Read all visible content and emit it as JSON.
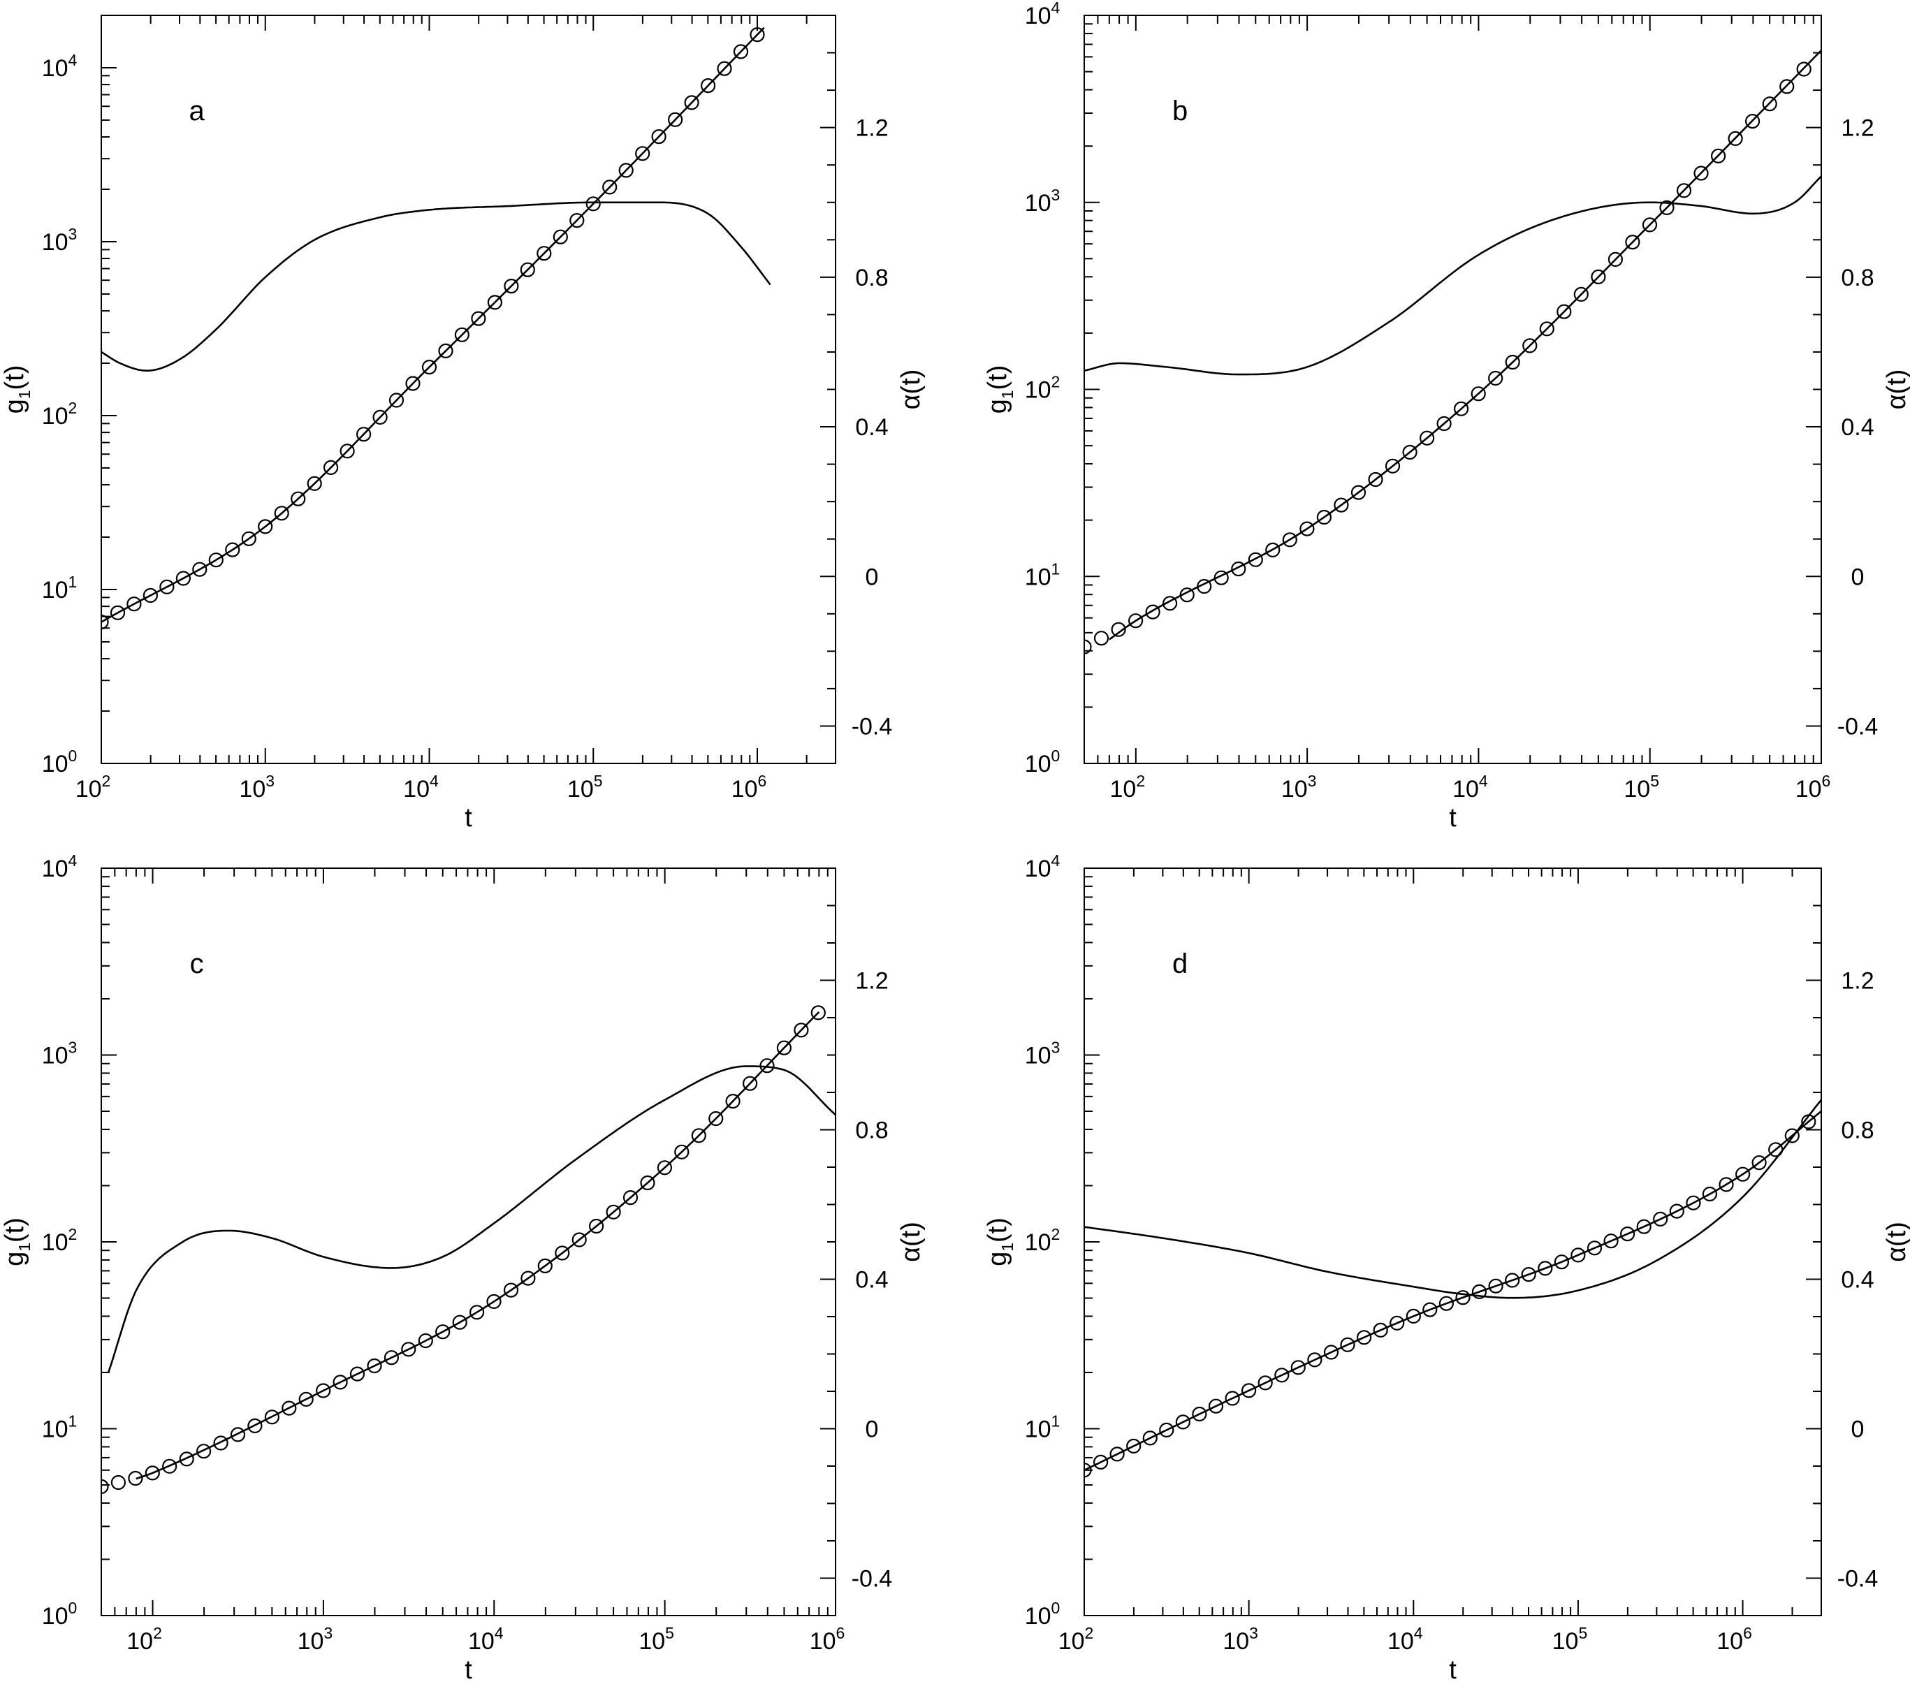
{
  "chart_data": [
    {
      "type": "scatter",
      "panel_label": "a",
      "xlabel": "t",
      "ylabel": "g1(t)",
      "ylabel_right": "α(t)",
      "x_scale": "log",
      "y_scale": "log",
      "xlim": [
        100,
        3000000
      ],
      "ylim": [
        1,
        20000
      ],
      "y2lim": [
        -0.5,
        1.5
      ],
      "x_ticks": [
        {
          "base": "10",
          "exp": "2"
        },
        {
          "base": "10",
          "exp": "3"
        },
        {
          "base": "10",
          "exp": "4"
        },
        {
          "base": "10",
          "exp": "5"
        },
        {
          "base": "10",
          "exp": "6"
        }
      ],
      "y_ticks": [
        {
          "base": "10",
          "exp": "0"
        },
        {
          "base": "10",
          "exp": "1"
        },
        {
          "base": "10",
          "exp": "2"
        },
        {
          "base": "10",
          "exp": "3"
        },
        {
          "base": "10",
          "exp": "4"
        }
      ],
      "y2_ticks": [
        "-0.4",
        "0",
        "0.4",
        "0.8",
        "1.2"
      ],
      "y2_tick_values": [
        -0.4,
        0,
        0.4,
        0.8,
        1.2
      ],
      "g1_points": {
        "t": [
          100,
          1000,
          10000,
          100000,
          1100000
        ],
        "g1": [
          6.5,
          23,
          190,
          1650,
          17000
        ]
      },
      "g1_fit": {
        "t": [
          100,
          1000,
          10000,
          100000,
          1100000
        ],
        "g1": [
          6.5,
          23,
          190,
          1650,
          17000
        ]
      },
      "alpha": {
        "t": [
          100,
          130,
          190,
          300,
          500,
          1000,
          2000,
          5000,
          10000,
          30000,
          100000,
          250000,
          500000,
          800000,
          1200000
        ],
        "alpha": [
          0.6,
          0.57,
          0.55,
          0.58,
          0.66,
          0.8,
          0.9,
          0.96,
          0.98,
          0.99,
          1.0,
          1.0,
          0.97,
          0.88,
          0.78
        ]
      }
    },
    {
      "type": "scatter",
      "panel_label": "b",
      "xlabel": "t",
      "ylabel": "g1(t)",
      "ylabel_right": "α(t)",
      "x_scale": "log",
      "y_scale": "log",
      "xlim": [
        50,
        1000000
      ],
      "ylim": [
        1,
        10000
      ],
      "y2lim": [
        -0.5,
        1.5
      ],
      "x_ticks": [
        {
          "base": "10",
          "exp": "2"
        },
        {
          "base": "10",
          "exp": "3"
        },
        {
          "base": "10",
          "exp": "4"
        },
        {
          "base": "10",
          "exp": "5"
        },
        {
          "base": "10",
          "exp": "6"
        }
      ],
      "y_ticks": [
        {
          "base": "10",
          "exp": "0"
        },
        {
          "base": "10",
          "exp": "1"
        },
        {
          "base": "10",
          "exp": "2"
        },
        {
          "base": "10",
          "exp": "3"
        },
        {
          "base": "10",
          "exp": "4"
        }
      ],
      "y2_ticks": [
        "-0.4",
        "0",
        "0.4",
        "0.8",
        "1.2"
      ],
      "y2_tick_values": [
        -0.4,
        0,
        0.4,
        0.8,
        1.2
      ],
      "g1_points": {
        "t": [
          50,
          100,
          1000,
          10000,
          100000,
          900000
        ],
        "g1": [
          4.2,
          5.8,
          18,
          95,
          760,
          5800
        ]
      },
      "g1_fit": {
        "t": [
          70,
          100,
          1000,
          10000,
          100000,
          1000000
        ],
        "g1": [
          4.6,
          5.8,
          18,
          95,
          760,
          6500
        ]
      },
      "alpha": {
        "t": [
          50,
          80,
          150,
          400,
          1000,
          3000,
          10000,
          30000,
          100000,
          200000,
          400000,
          700000,
          1000000
        ],
        "alpha": [
          0.55,
          0.57,
          0.56,
          0.54,
          0.56,
          0.68,
          0.86,
          0.96,
          1.0,
          0.99,
          0.97,
          1.0,
          1.07
        ]
      }
    },
    {
      "type": "scatter",
      "panel_label": "c",
      "xlabel": "t",
      "ylabel": "g1(t)",
      "ylabel_right": "α(t)",
      "x_scale": "log",
      "y_scale": "log",
      "xlim": [
        50,
        1000000
      ],
      "ylim": [
        1,
        10000
      ],
      "y2lim": [
        -0.5,
        1.5
      ],
      "x_ticks": [
        {
          "base": "10",
          "exp": "2"
        },
        {
          "base": "10",
          "exp": "3"
        },
        {
          "base": "10",
          "exp": "4"
        },
        {
          "base": "10",
          "exp": "5"
        },
        {
          "base": "10",
          "exp": "6"
        }
      ],
      "y_ticks": [
        {
          "base": "10",
          "exp": "0"
        },
        {
          "base": "10",
          "exp": "1"
        },
        {
          "base": "10",
          "exp": "2"
        },
        {
          "base": "10",
          "exp": "3"
        },
        {
          "base": "10",
          "exp": "4"
        }
      ],
      "y2_ticks": [
        "-0.4",
        "0",
        "0.4",
        "0.8",
        "1.2"
      ],
      "y2_tick_values": [
        -0.4,
        0,
        0.4,
        0.8,
        1.2
      ],
      "g1_points": {
        "t": [
          50,
          100,
          1000,
          10000,
          100000,
          800000
        ],
        "g1": [
          4.9,
          5.8,
          16,
          48,
          250,
          1700
        ]
      },
      "g1_fit": {
        "t": [
          80,
          100,
          1000,
          10000,
          100000,
          800000
        ],
        "g1": [
          5.4,
          5.8,
          16,
          48,
          250,
          1700
        ]
      },
      "alpha": {
        "t": [
          55,
          80,
          150,
          280,
          500,
          1000,
          2500,
          5000,
          10000,
          30000,
          100000,
          300000,
          500000,
          1000000
        ],
        "alpha": [
          0.15,
          0.37,
          0.5,
          0.53,
          0.51,
          0.46,
          0.43,
          0.46,
          0.55,
          0.72,
          0.88,
          0.97,
          0.96,
          0.84
        ]
      }
    },
    {
      "type": "scatter",
      "panel_label": "d",
      "xlabel": "t",
      "ylabel": "g1(t)",
      "ylabel_right": "α(t)",
      "x_scale": "log",
      "y_scale": "log",
      "xlim": [
        100,
        3000000
      ],
      "ylim": [
        1,
        10000
      ],
      "y2lim": [
        -0.5,
        1.5
      ],
      "x_ticks": [
        {
          "base": "10",
          "exp": "2"
        },
        {
          "base": "10",
          "exp": "3"
        },
        {
          "base": "10",
          "exp": "4"
        },
        {
          "base": "10",
          "exp": "5"
        },
        {
          "base": "10",
          "exp": "6"
        }
      ],
      "y_ticks": [
        {
          "base": "10",
          "exp": "0"
        },
        {
          "base": "10",
          "exp": "1"
        },
        {
          "base": "10",
          "exp": "2"
        },
        {
          "base": "10",
          "exp": "3"
        },
        {
          "base": "10",
          "exp": "4"
        }
      ],
      "y2_ticks": [
        "-0.4",
        "0",
        "0.4",
        "0.8",
        "1.2"
      ],
      "y2_tick_values": [
        -0.4,
        0,
        0.4,
        0.8,
        1.2
      ],
      "g1_points": {
        "t": [
          100,
          1000,
          10000,
          100000,
          1000000,
          3000000
        ],
        "g1": [
          6,
          16,
          40,
          85,
          230,
          500
        ]
      },
      "g1_fit": {
        "t": [
          100,
          1000,
          10000,
          100000,
          1000000,
          3000000
        ],
        "g1": [
          6,
          16,
          40,
          85,
          230,
          500
        ]
      },
      "alpha": {
        "t": [
          100,
          300,
          1000,
          3000,
          10000,
          20000,
          40000,
          100000,
          300000,
          1000000,
          3000000
        ],
        "alpha": [
          0.54,
          0.51,
          0.47,
          0.42,
          0.38,
          0.36,
          0.35,
          0.37,
          0.45,
          0.62,
          0.88
        ]
      }
    }
  ]
}
